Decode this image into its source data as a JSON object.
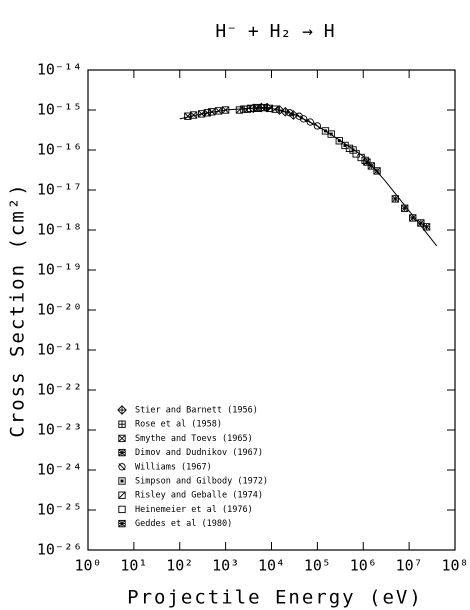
{
  "chart_data": {
    "type": "scatter",
    "title": "H⁻ + H₂ → H",
    "x_label": "Projectile Energy (eV)",
    "y_label": "Cross Section (cm²)",
    "xscale": "log",
    "yscale": "log",
    "xlim": [
      1,
      100000000
    ],
    "ylim": [
      1e-26,
      1e-14
    ],
    "xticks": [
      {
        "value": 1,
        "label": "10⁰"
      },
      {
        "value": 10,
        "label": "10¹"
      },
      {
        "value": 100,
        "label": "10²"
      },
      {
        "value": 1000,
        "label": "10³"
      },
      {
        "value": 10000,
        "label": "10⁴"
      },
      {
        "value": 100000,
        "label": "10⁵"
      },
      {
        "value": 1000000,
        "label": "10⁶"
      },
      {
        "value": 10000000,
        "label": "10⁷"
      },
      {
        "value": 100000000,
        "label": "10⁸"
      }
    ],
    "yticks": [
      {
        "value": 1e-26,
        "label": "10⁻²⁶"
      },
      {
        "value": 1e-25,
        "label": "10⁻²⁵"
      },
      {
        "value": 1e-24,
        "label": "10⁻²⁴"
      },
      {
        "value": 1e-23,
        "label": "10⁻²³"
      },
      {
        "value": 1e-22,
        "label": "10⁻²²"
      },
      {
        "value": 1e-21,
        "label": "10⁻²¹"
      },
      {
        "value": 1e-20,
        "label": "10⁻²⁰"
      },
      {
        "value": 1e-19,
        "label": "10⁻¹⁹"
      },
      {
        "value": 1e-18,
        "label": "10⁻¹⁸"
      },
      {
        "value": 1e-17,
        "label": "10⁻¹⁷"
      },
      {
        "value": 1e-16,
        "label": "10⁻¹⁶"
      },
      {
        "value": 1e-15,
        "label": "10⁻¹⁵"
      },
      {
        "value": 1e-14,
        "label": "10⁻¹⁴"
      }
    ],
    "color": "#000000",
    "series": [
      {
        "name": "Stier and Barnett (1956)",
        "x": [
          4000,
          6000,
          8000,
          15000,
          20000,
          30000
        ],
        "values": [
          1.1e-15,
          1.15e-15,
          1.15e-15,
          1e-15,
          9e-16,
          7.5e-16
        ]
      },
      {
        "name": "Rose et al (1958)",
        "x": [
          2500,
          3500,
          5000,
          7000
        ],
        "values": [
          1.05e-15,
          1.1e-15,
          1.15e-15,
          1.15e-15
        ]
      },
      {
        "name": "Smythe and Toevs (1965)",
        "x": [
          150,
          200,
          300,
          400,
          500,
          700,
          1000
        ],
        "values": [
          7e-16,
          7.5e-16,
          8e-16,
          8.5e-16,
          9e-16,
          9.5e-16,
          1e-15
        ]
      },
      {
        "name": "Dimov and Dudnikov (1967)",
        "x": [
          1200000,
          1500000,
          2000000
        ],
        "values": [
          5e-17,
          4e-17,
          3e-17
        ]
      },
      {
        "name": "Williams (1967)",
        "x": [
          25000,
          40000,
          50000,
          70000,
          100000
        ],
        "values": [
          8.5e-16,
          7e-16,
          6e-16,
          5e-16,
          4e-16
        ]
      },
      {
        "name": "Simpson and Gilbody (1972)",
        "x": [
          150000,
          200000,
          300000,
          400000,
          600000
        ],
        "values": [
          3e-16,
          2.5e-16,
          1.7e-16,
          1.3e-16,
          1e-16
        ]
      },
      {
        "name": "Risley and Geballe (1974)",
        "x": [
          2000,
          3000,
          5000,
          9000,
          12000
        ],
        "values": [
          1e-15,
          1.05e-15,
          1.1e-15,
          1.1e-15,
          1.05e-15
        ]
      },
      {
        "name": "Heinemeier et al (1976)",
        "x": [
          500000,
          700000,
          900000,
          1100000
        ],
        "values": [
          1.1e-16,
          8e-17,
          6.5e-17,
          5.5e-17
        ]
      },
      {
        "name": "Geddes et al (1980)",
        "x": [
          5000000,
          8000000,
          12000000,
          18000000,
          24000000
        ],
        "values": [
          6e-18,
          3.5e-18,
          2e-18,
          1.5e-18,
          1.2e-18
        ]
      },
      {
        "type": "line",
        "x": [
          100,
          300,
          1000,
          3000,
          10000,
          30000,
          100000,
          300000,
          1000000,
          3000000,
          10000000,
          40000000
        ],
        "values": [
          6e-16,
          8e-16,
          1e-15,
          1.1e-15,
          1.1e-15,
          8e-16,
          4e-16,
          1.8e-16,
          7e-17,
          1.7e-17,
          3e-18,
          4e-19
        ]
      }
    ]
  }
}
